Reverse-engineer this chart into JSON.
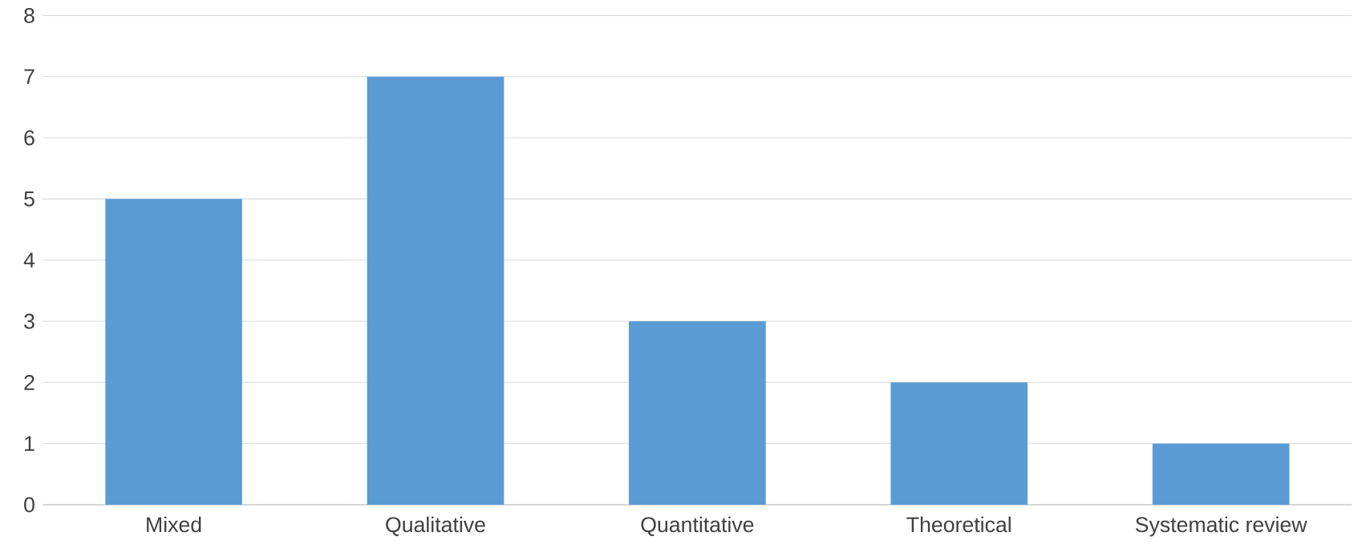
{
  "chart_data": {
    "type": "bar",
    "categories": [
      "Mixed",
      "Qualitative",
      "Quantitative",
      "Theoretical",
      "Systematic review"
    ],
    "values": [
      5,
      7,
      3,
      2,
      1
    ],
    "color": "#5b9bd5",
    "ylim": [
      0,
      8
    ],
    "yticks": [
      0,
      1,
      2,
      3,
      4,
      5,
      6,
      7,
      8
    ],
    "grid": "y"
  }
}
